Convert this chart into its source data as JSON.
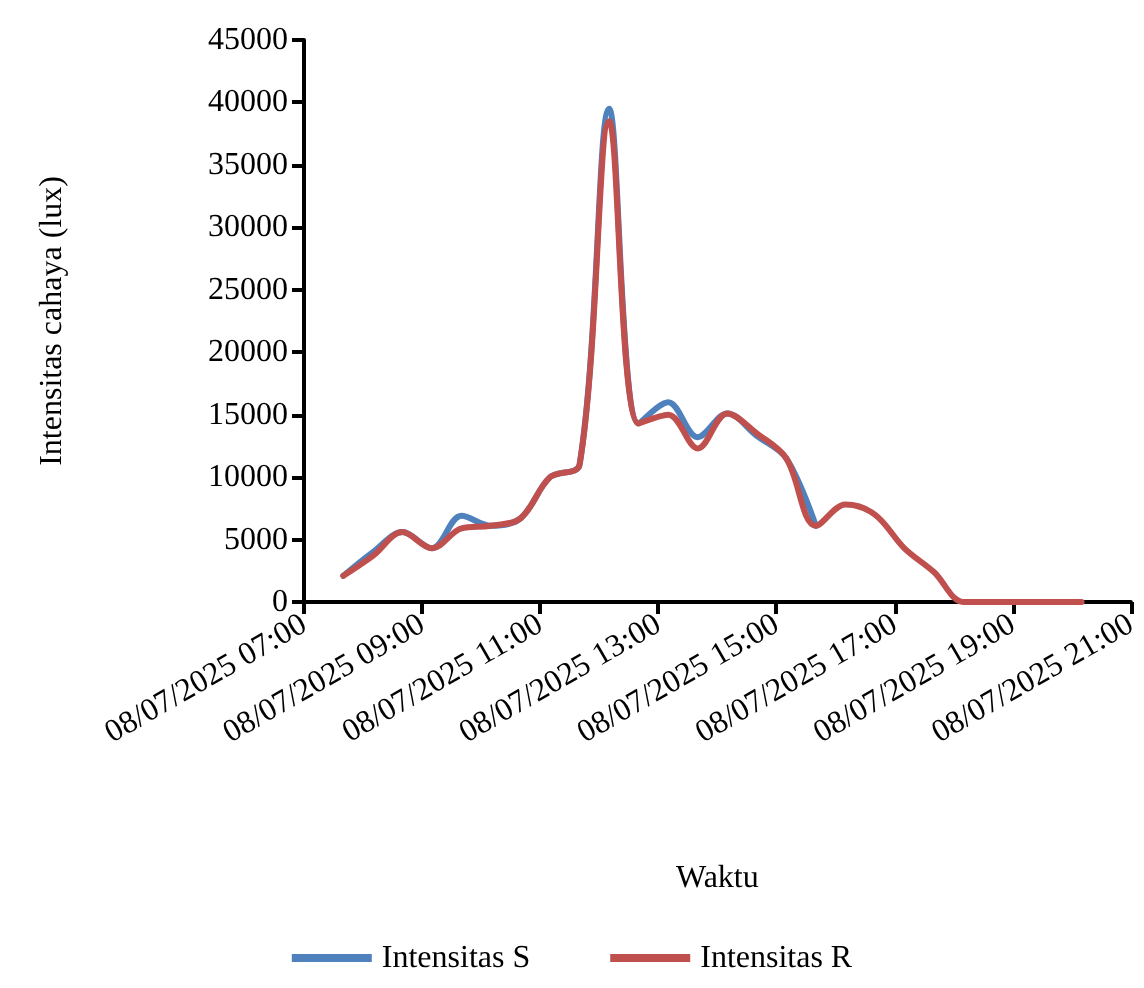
{
  "chart_data": {
    "type": "line",
    "xlabel": "Waktu",
    "ylabel": "Intensitas cahaya (lux)",
    "x": [
      "2025-07-08T07:40",
      "2025-07-08T08:10",
      "2025-07-08T08:40",
      "2025-07-08T09:10",
      "2025-07-08T09:40",
      "2025-07-08T10:10",
      "2025-07-08T10:40",
      "2025-07-08T11:10",
      "2025-07-08T11:40",
      "2025-07-08T12:10",
      "2025-07-08T12:40",
      "2025-07-08T13:10",
      "2025-07-08T13:40",
      "2025-07-08T14:10",
      "2025-07-08T14:40",
      "2025-07-08T15:10",
      "2025-07-08T15:40",
      "2025-07-08T16:10",
      "2025-07-08T16:40",
      "2025-07-08T17:10",
      "2025-07-08T17:40",
      "2025-07-08T18:10",
      "2025-07-08T18:40",
      "2025-07-08T19:10",
      "2025-07-08T19:40",
      "2025-07-08T20:10"
    ],
    "series": [
      {
        "name": "Intensitas S",
        "color": "#4f81bd",
        "values": [
          2100,
          4000,
          5600,
          4300,
          6900,
          6100,
          6700,
          10000,
          11000,
          39500,
          14300,
          16000,
          13200,
          15100,
          13300,
          11500,
          6100,
          null,
          null,
          null,
          null,
          null,
          null,
          null,
          null,
          null
        ]
      },
      {
        "name": "Intensitas R",
        "color": "#c0504d",
        "values": [
          2100,
          3700,
          5600,
          4300,
          5900,
          6100,
          6700,
          10000,
          11000,
          38500,
          14300,
          15000,
          12300,
          15100,
          13500,
          11500,
          6100,
          7800,
          7000,
          4300,
          2400,
          0,
          0,
          0,
          0,
          0
        ]
      }
    ],
    "xlim": [
      "2025-07-08T07:00",
      "2025-07-08T21:00"
    ],
    "xticks": [
      {
        "value": "2025-07-08T07:00",
        "label": "08/07/2025 07:00"
      },
      {
        "value": "2025-07-08T09:00",
        "label": "08/07/2025 09:00"
      },
      {
        "value": "2025-07-08T11:00",
        "label": "08/07/2025 11:00"
      },
      {
        "value": "2025-07-08T13:00",
        "label": "08/07/2025 13:00"
      },
      {
        "value": "2025-07-08T15:00",
        "label": "08/07/2025 15:00"
      },
      {
        "value": "2025-07-08T17:00",
        "label": "08/07/2025 17:00"
      },
      {
        "value": "2025-07-08T19:00",
        "label": "08/07/2025 19:00"
      },
      {
        "value": "2025-07-08T21:00",
        "label": "08/07/2025 21:00"
      }
    ],
    "ylim": [
      0,
      45000
    ],
    "yticks": [
      0,
      5000,
      10000,
      15000,
      20000,
      25000,
      30000,
      35000,
      40000,
      45000
    ],
    "grid": false,
    "legend": "bottom",
    "marker": "none",
    "line_style": "solid"
  }
}
